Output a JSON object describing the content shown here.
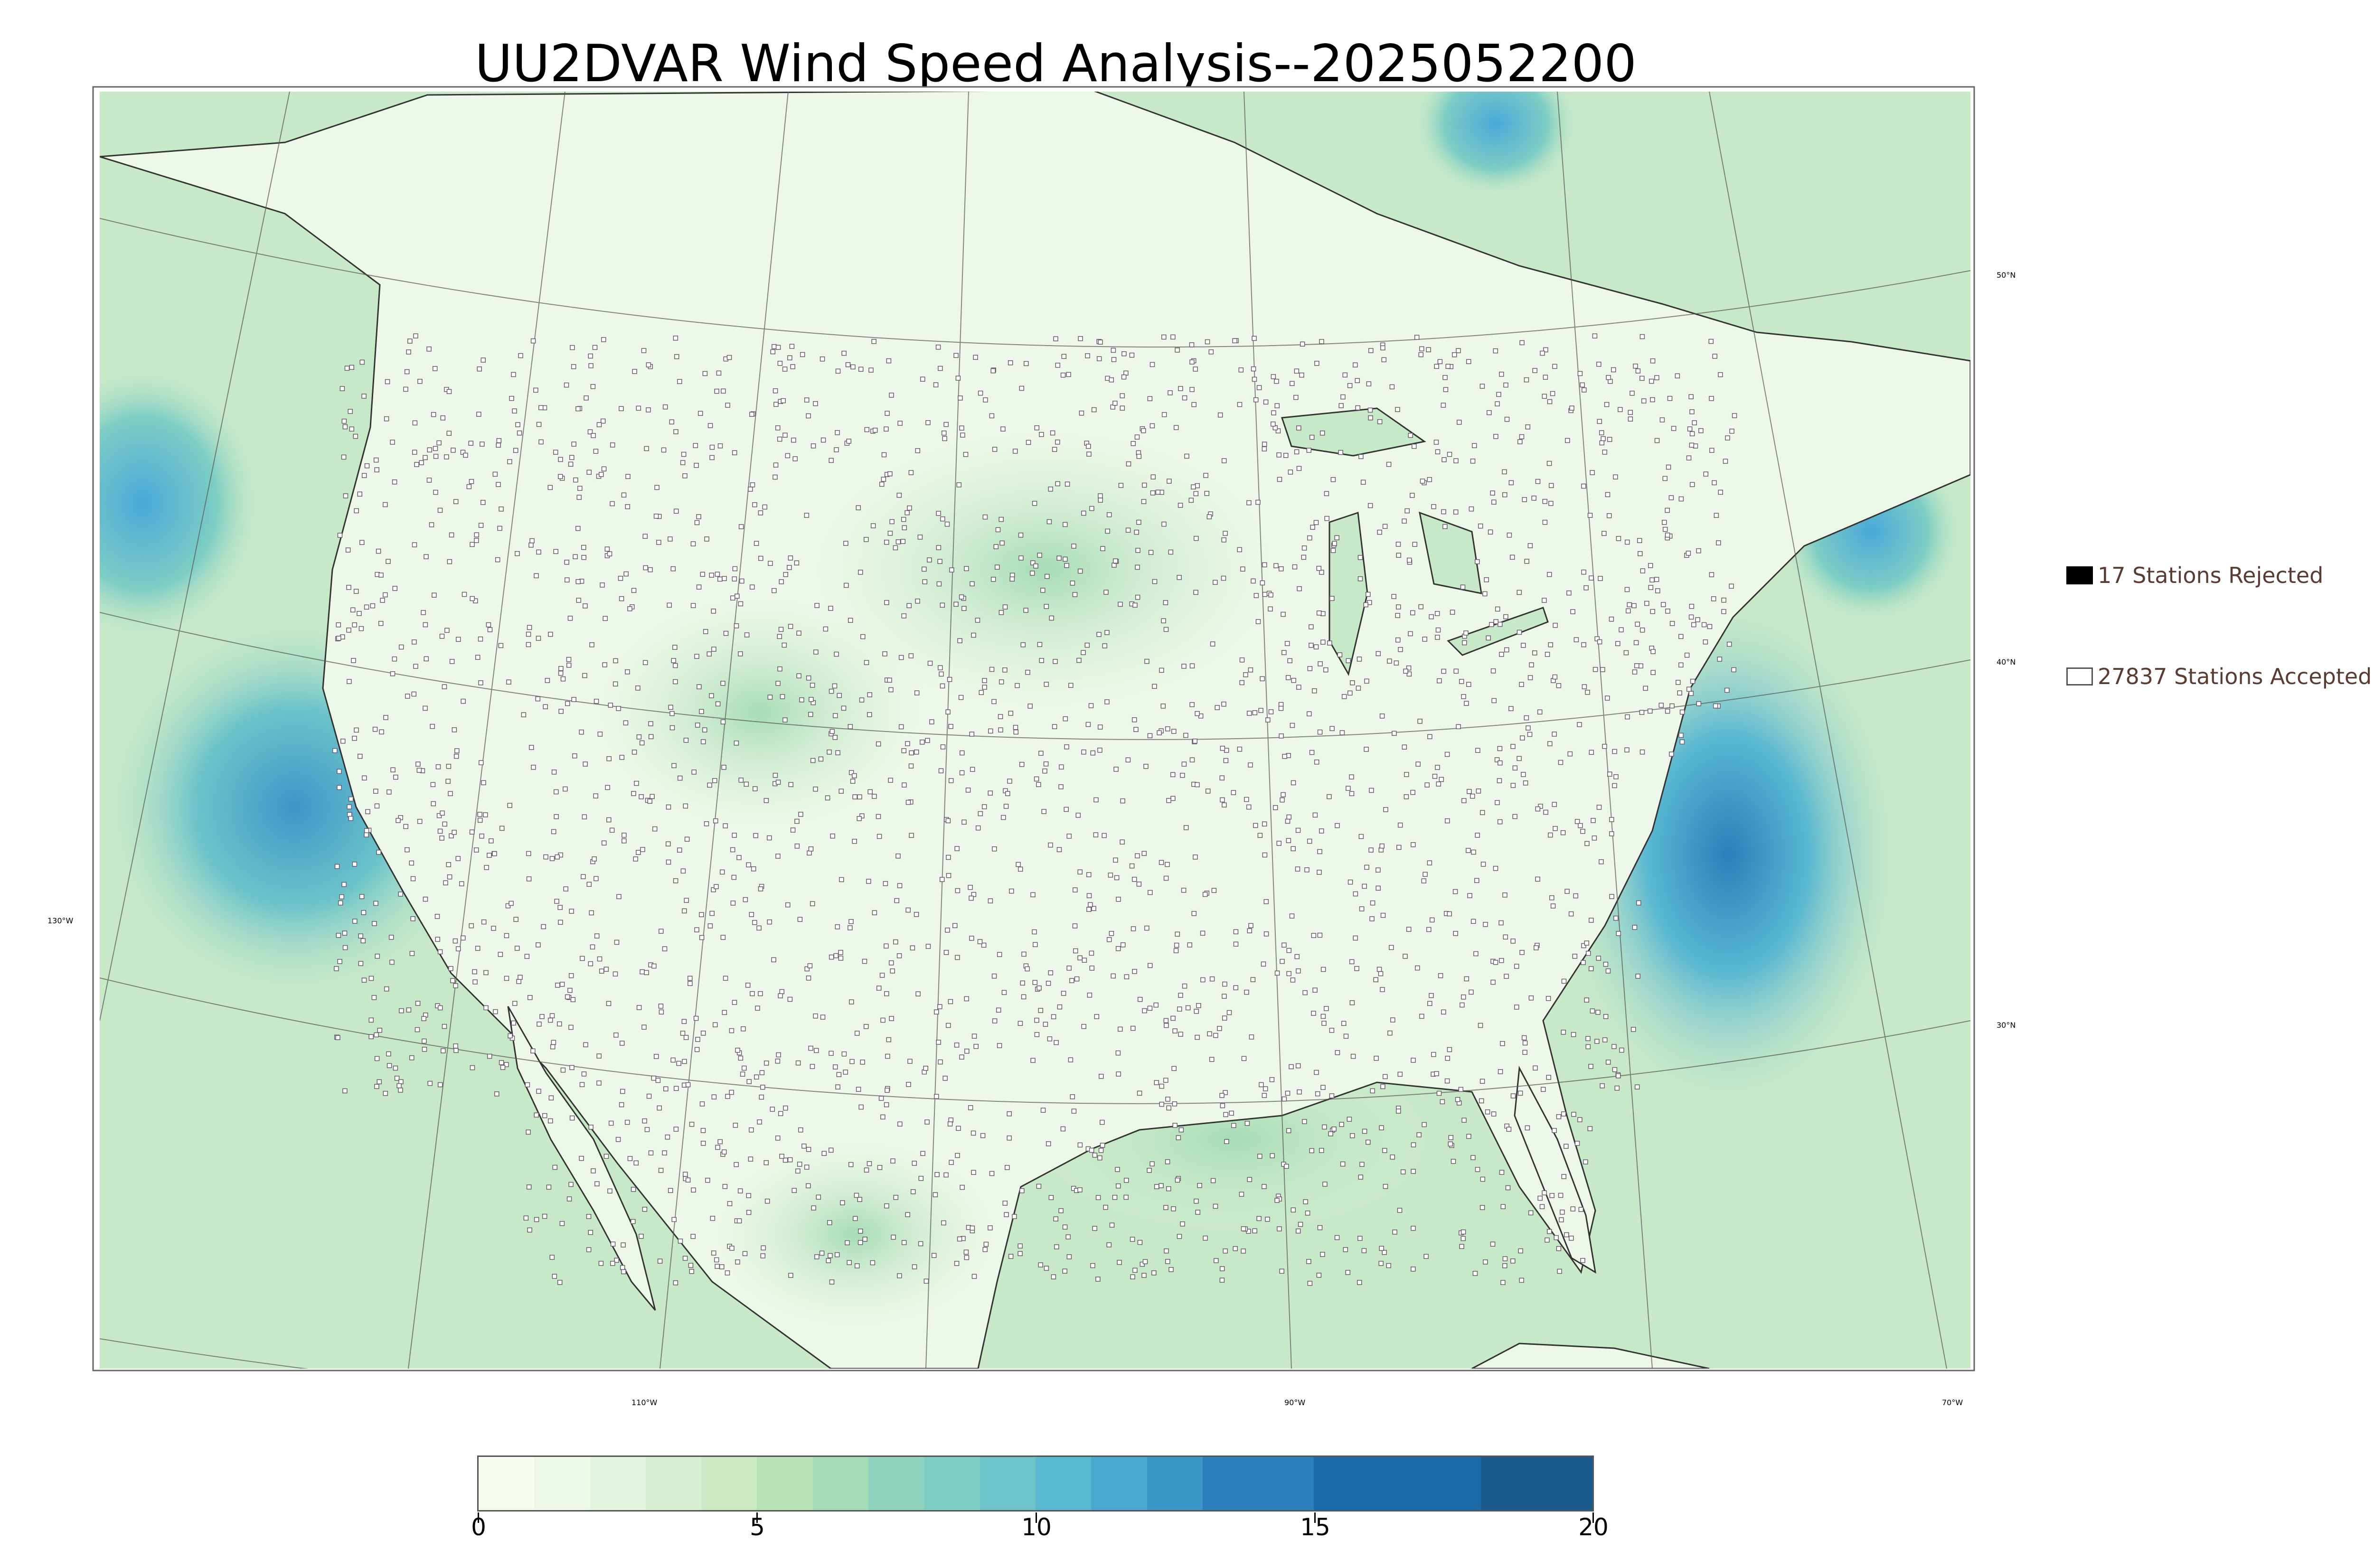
{
  "title": "UU2DVAR Wind Speed Analysis--2025052200",
  "legend": {
    "rejected": {
      "label": "17 Stations Rejected",
      "color": "#000000"
    },
    "accepted": {
      "label": "27837 Stations Accepted",
      "color": "#ffffff"
    }
  },
  "graticule_labels": {
    "lat_50": "50°N",
    "lat_40": "40°N",
    "lat_30": "30°N",
    "lon_130": "130°W",
    "lon_110": "110°W",
    "lon_90": "90°W",
    "lon_70": "70°W"
  },
  "colorbar": {
    "ticks": [
      "0",
      "5",
      "10",
      "15",
      "20"
    ],
    "range": [
      0,
      20
    ],
    "colors": [
      "#f7fcf0",
      "#eef8e9",
      "#e2f4dd",
      "#d6efd0",
      "#c9eac2",
      "#b8e3b7",
      "#a6dcb5",
      "#8fd3bf",
      "#7ccdc4",
      "#6cc4c9",
      "#5ab8d1",
      "#4aa8d0",
      "#3d96c8",
      "#2b7fbb",
      "#1b6aaa",
      "#185b8c"
    ],
    "bounds": [
      0,
      1,
      2,
      3,
      4,
      5,
      6,
      7,
      8,
      9,
      10,
      11,
      12,
      13,
      15,
      18,
      20
    ]
  },
  "colors": {
    "ocean_base": "#c8e9c8",
    "land_base": "#eef8ea",
    "coast_line": "#333333",
    "station_fill": "#ffffff",
    "station_edge": "#6b5a6b"
  }
}
